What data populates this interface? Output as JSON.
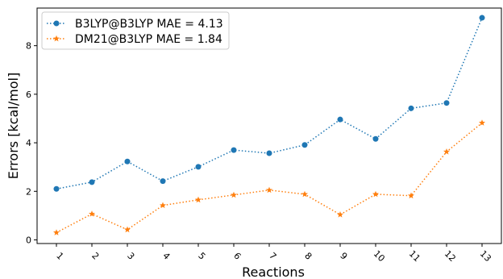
{
  "chart_data": {
    "type": "line",
    "xlabel": "Reactions",
    "ylabel": "Errors [kcal/mol]",
    "categories": [
      "1",
      "2",
      "3",
      "4",
      "5",
      "6",
      "7",
      "8",
      "9",
      "10",
      "11",
      "12",
      "13"
    ],
    "ylim": [
      -0.15,
      9.55
    ],
    "yticks": [
      0,
      2,
      4,
      6,
      8
    ],
    "grid": false,
    "legend_position": "top-left",
    "series": [
      {
        "name": "B3LYP@B3LYP MAE = 4.13",
        "color": "#1f77b4",
        "marker": "circle",
        "linestyle": "dotted",
        "values": [
          2.1,
          2.38,
          3.23,
          2.42,
          3.01,
          3.7,
          3.57,
          3.91,
          4.96,
          4.16,
          5.42,
          5.64,
          9.15
        ]
      },
      {
        "name": "DM21@B3LYP MAE = 1.84",
        "color": "#ff7f0e",
        "marker": "star",
        "linestyle": "dotted",
        "values": [
          0.3,
          1.07,
          0.42,
          1.42,
          1.65,
          1.85,
          2.05,
          1.88,
          1.04,
          1.88,
          1.82,
          3.63,
          4.82
        ]
      }
    ]
  }
}
